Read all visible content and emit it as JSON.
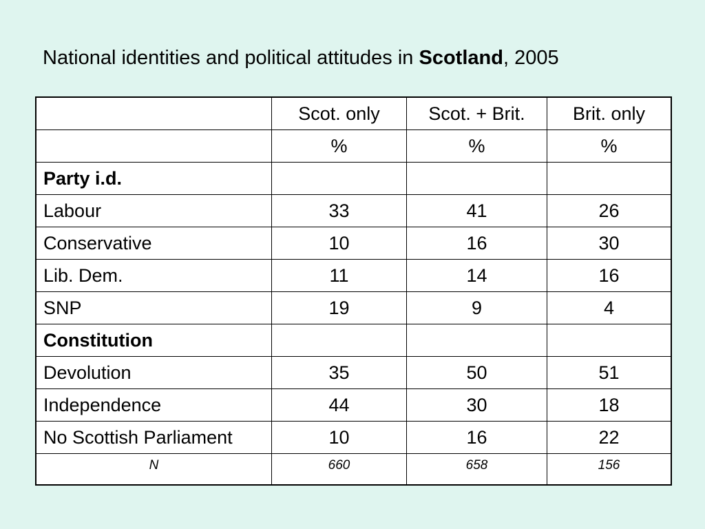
{
  "title": {
    "prefix": "National identities and political attitudes in ",
    "emphasis": "Scotland",
    "suffix": ", 2005"
  },
  "table": {
    "headers": [
      "",
      "Scot. only",
      "Scot. + Brit.",
      "Brit. only"
    ],
    "units": [
      "",
      "%",
      "%",
      "%"
    ],
    "rows": [
      {
        "label": "Party i.d.",
        "section": true,
        "values": [
          "",
          "",
          ""
        ]
      },
      {
        "label": "Labour",
        "section": false,
        "values": [
          "33",
          "41",
          "26"
        ]
      },
      {
        "label": "Conservative",
        "section": false,
        "values": [
          "10",
          "16",
          "30"
        ]
      },
      {
        "label": "Lib. Dem.",
        "section": false,
        "values": [
          "11",
          "14",
          "16"
        ]
      },
      {
        "label": "SNP",
        "section": false,
        "values": [
          "19",
          "9",
          "4"
        ]
      },
      {
        "label": "Constitution",
        "section": true,
        "values": [
          "",
          "",
          ""
        ]
      },
      {
        "label": "Devolution",
        "section": false,
        "values": [
          "35",
          "50",
          "51"
        ]
      },
      {
        "label": "Independence",
        "section": false,
        "values": [
          "44",
          "30",
          "18"
        ]
      },
      {
        "label": "No Scottish Parliament",
        "section": false,
        "values": [
          "10",
          "16",
          "22"
        ]
      }
    ],
    "n_row": {
      "label": "N",
      "values": [
        "660",
        "658",
        "156"
      ]
    }
  }
}
